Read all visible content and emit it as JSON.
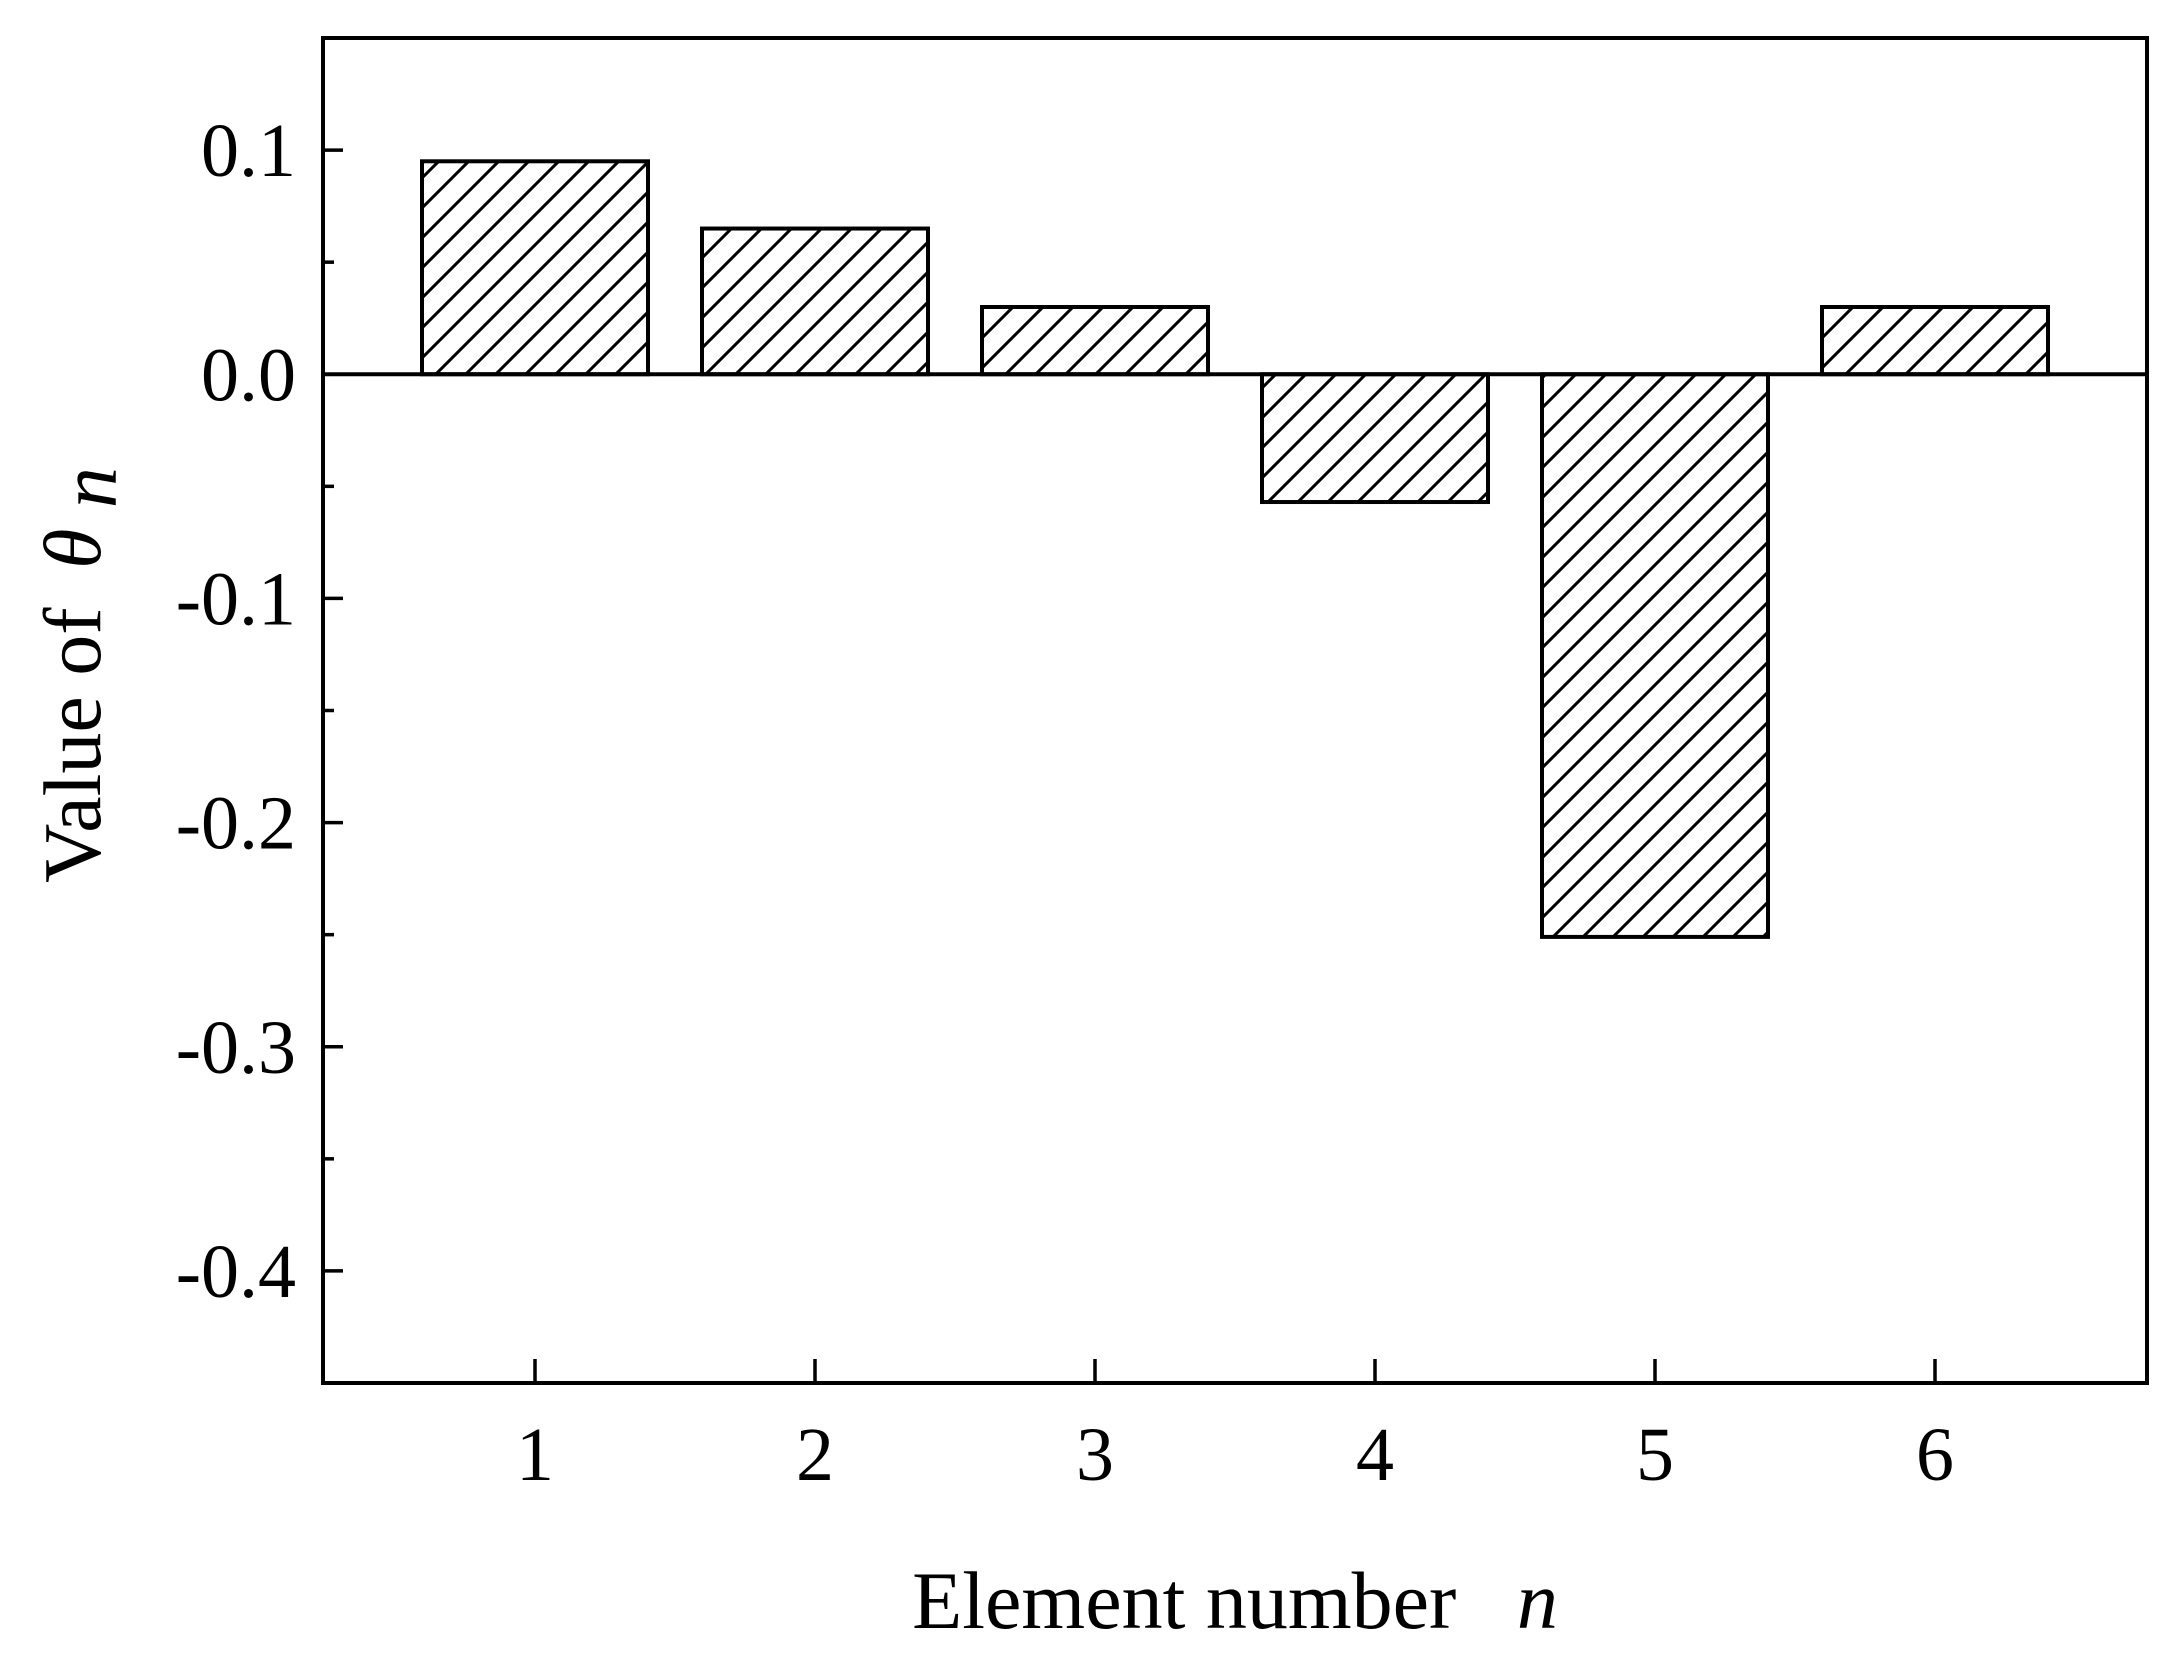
{
  "chart_data": {
    "type": "bar",
    "categories": [
      "1",
      "2",
      "3",
      "4",
      "5",
      "6"
    ],
    "values": [
      0.095,
      0.065,
      0.03,
      -0.057,
      -0.251,
      0.03
    ],
    "xlabel_text": "Element number",
    "xlabel_var": "n",
    "ylabel_text": "Value of",
    "ylabel_symbol": "θ",
    "ylabel_sub": "n",
    "ylim": [
      -0.45,
      0.15
    ],
    "yticks_major": [
      "0.1",
      "0.0",
      "-0.1",
      "-0.2",
      "-0.3",
      "-0.4"
    ],
    "ytick_values": [
      0.1,
      0.0,
      -0.1,
      -0.2,
      -0.3,
      -0.4
    ],
    "yticks_minor": [
      0.05,
      -0.05,
      -0.15,
      -0.25,
      -0.35
    ],
    "bar_style": "diagonal-hatch",
    "bar_color": "#ffffff",
    "stroke_color": "#000000",
    "grid": false,
    "legend": "none"
  }
}
